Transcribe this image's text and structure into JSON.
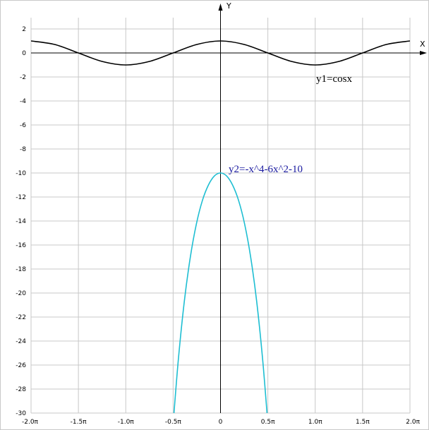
{
  "chart_data": {
    "type": "line",
    "xlabel": "X",
    "ylabel": "Y",
    "xlim": [
      -6.2832,
      6.2832
    ],
    "ylim": [
      -30,
      2
    ],
    "grid": true,
    "x_ticks": [
      {
        "value": -6.2832,
        "label": "-2.0π"
      },
      {
        "value": -4.7124,
        "label": "-1.5π"
      },
      {
        "value": -3.1416,
        "label": "-1.0π"
      },
      {
        "value": -1.5708,
        "label": "-0.5π"
      },
      {
        "value": 0,
        "label": "0"
      },
      {
        "value": 1.5708,
        "label": "0.5π"
      },
      {
        "value": 3.1416,
        "label": "1.0π"
      },
      {
        "value": 4.7124,
        "label": "1.5π"
      },
      {
        "value": 6.2832,
        "label": "2.0π"
      }
    ],
    "y_ticks": [
      2,
      0,
      -2,
      -4,
      -6,
      -8,
      -10,
      -12,
      -14,
      -16,
      -18,
      -20,
      -22,
      -24,
      -26,
      -28,
      -30
    ],
    "series": [
      {
        "name": "y1=cosx",
        "color": "#000000",
        "x": [
          -6.2832,
          -5.4978,
          -4.7124,
          -3.927,
          -3.1416,
          -2.3562,
          -1.5708,
          -0.7854,
          0,
          0.7854,
          1.5708,
          2.3562,
          3.1416,
          3.927,
          4.7124,
          5.4978,
          6.2832
        ],
        "y": [
          1,
          0.707,
          0,
          -0.707,
          -1,
          -0.707,
          0,
          0.707,
          1,
          0.707,
          0,
          -0.707,
          -1,
          -0.707,
          0,
          0.707,
          1
        ]
      },
      {
        "name": "y2=-x^4-6x^2-10",
        "color": "#1ebed2",
        "x": [
          -1.5708,
          -1.4,
          -1.2,
          -1.0,
          -0.8,
          -0.6,
          -0.4,
          -0.2,
          0,
          0.2,
          0.4,
          0.6,
          0.8,
          1.0,
          1.2,
          1.4,
          1.5708
        ],
        "y": [
          -30.9,
          -25.6,
          -20.7,
          -17.0,
          -14.25,
          -12.29,
          -11.0,
          -10.24,
          -10.0,
          -10.24,
          -11.0,
          -12.29,
          -14.25,
          -17.0,
          -20.7,
          -25.6,
          -30.9
        ]
      }
    ]
  }
}
